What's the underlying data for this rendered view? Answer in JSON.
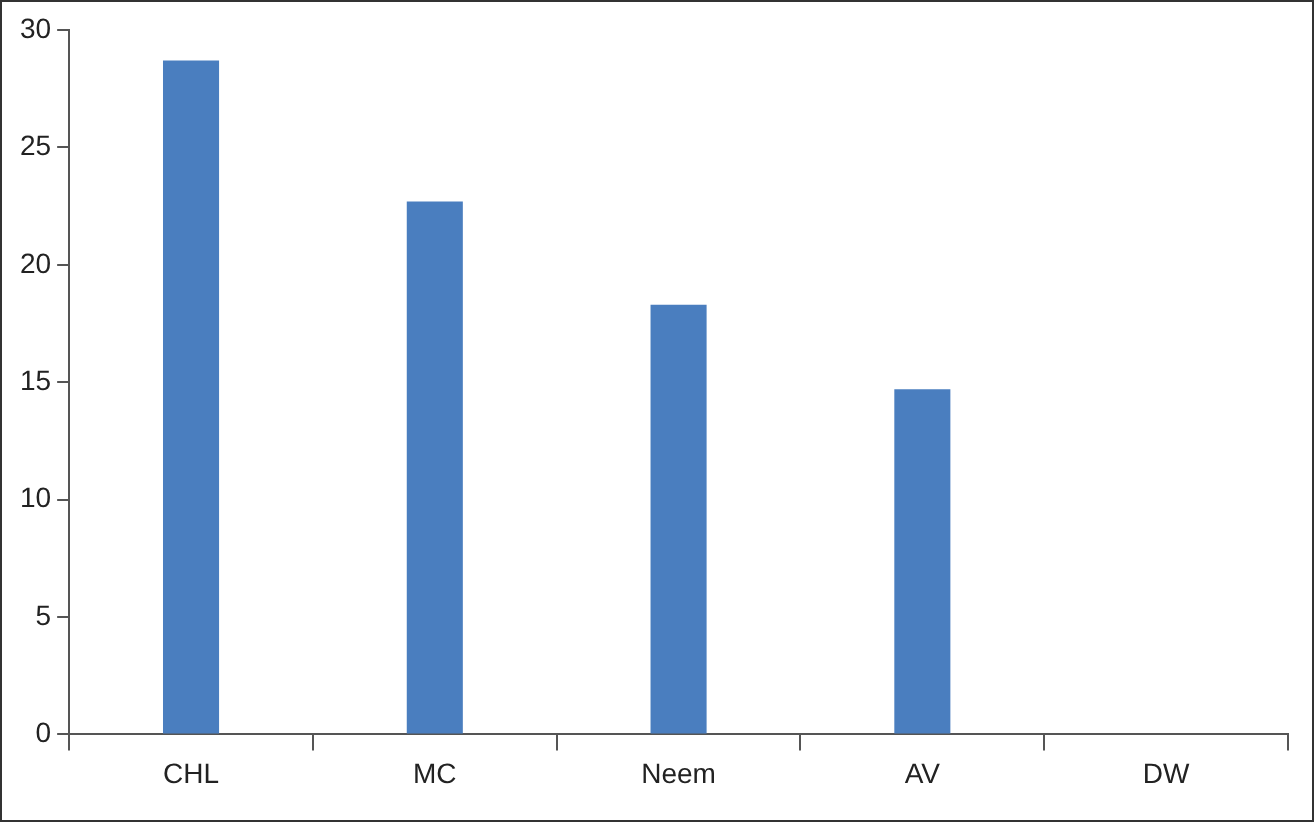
{
  "chart_data": {
    "type": "bar",
    "categories": [
      "CHL",
      "MC",
      "Neem",
      "AV",
      "DW"
    ],
    "values": [
      28.7,
      22.7,
      18.3,
      14.7,
      0
    ],
    "color": "#4a7ebf",
    "ylim": [
      0,
      30
    ],
    "yticks": [
      0,
      5,
      10,
      15,
      20,
      25,
      30
    ],
    "grid": false,
    "legend": false
  }
}
